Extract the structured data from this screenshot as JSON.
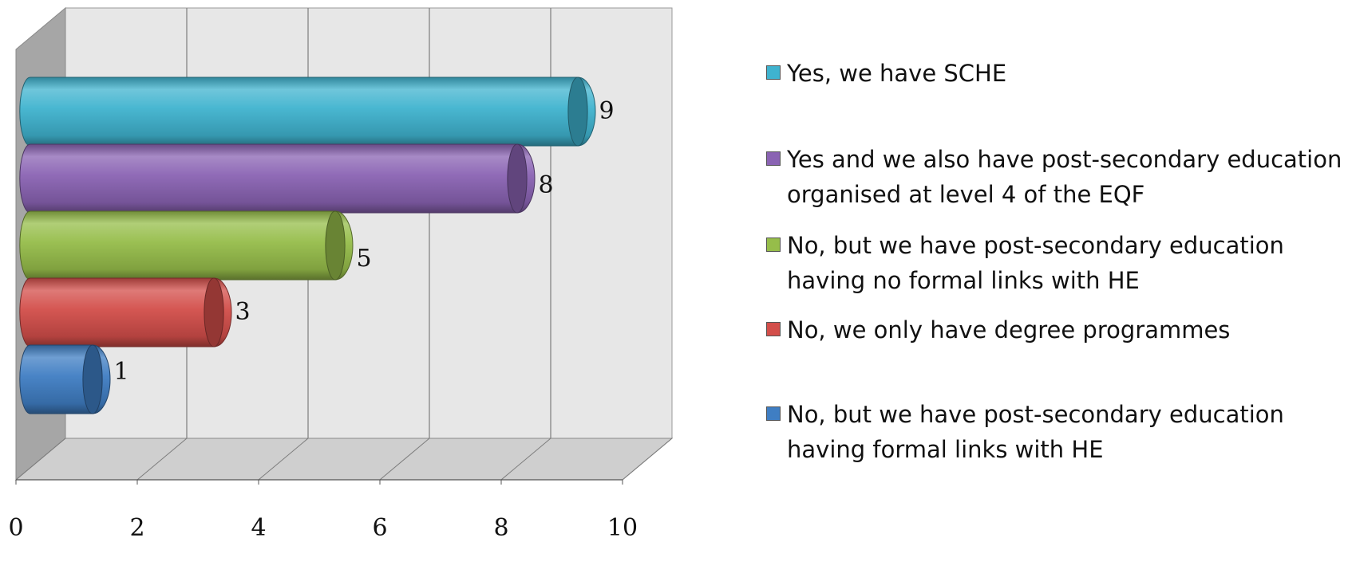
{
  "chart_data": {
    "type": "bar",
    "orientation": "horizontal",
    "style": "3d-cylinder",
    "categories": [
      "Yes, we have SCHE",
      "Yes and we also have post-secondary education organised at level 4 of the EQF",
      "No, but we have post-secondary education having no formal links with HE",
      "No, we only have degree programmes",
      "No, but we have post-secondary education having formal links with HE"
    ],
    "values": [
      9,
      8,
      5,
      3,
      1
    ],
    "colors": [
      "#3fb3cf",
      "#8a63b3",
      "#96bd4a",
      "#d34e4a",
      "#3f7ec3"
    ],
    "xlim": [
      0,
      10
    ],
    "xticks": [
      0,
      2,
      4,
      6,
      8,
      10
    ],
    "grid": true,
    "legend_position": "right",
    "title": "",
    "xlabel": "",
    "ylabel": ""
  }
}
